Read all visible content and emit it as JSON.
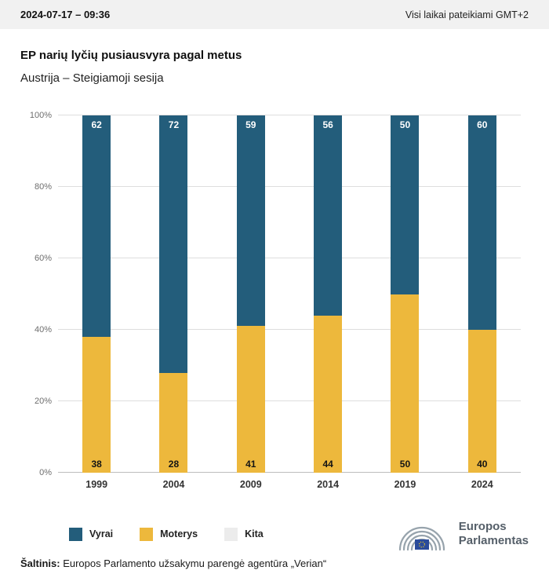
{
  "header": {
    "datetime": "2024-07-17 – 09:36",
    "timezone_note": "Visi laikai pateikiami GMT+2"
  },
  "title": "EP narių lyčių pusiausvyra pagal metus",
  "subtitle": "Austrija – Steigiamoji sesija",
  "chart_data": {
    "type": "bar",
    "stacked": true,
    "categories": [
      "1999",
      "2004",
      "2009",
      "2014",
      "2019",
      "2024"
    ],
    "series": [
      {
        "name": "Vyrai",
        "color": "#235d7b",
        "values": [
          62,
          72,
          59,
          56,
          50,
          60
        ]
      },
      {
        "name": "Moterys",
        "color": "#edb83c",
        "values": [
          38,
          28,
          41,
          44,
          50,
          40
        ]
      },
      {
        "name": "Kita",
        "color": "#ececec",
        "values": [
          0,
          0,
          0,
          0,
          0,
          0
        ]
      }
    ],
    "ylim": [
      0,
      100
    ],
    "yticks": [
      "0%",
      "20%",
      "40%",
      "60%",
      "80%",
      "100%"
    ],
    "grid": true,
    "legend_position": "bottom",
    "value_labels": true
  },
  "legend": {
    "items": [
      {
        "label": "Vyrai",
        "color": "#235d7b"
      },
      {
        "label": "Moterys",
        "color": "#edb83c"
      },
      {
        "label": "Kita",
        "color": "#ececec"
      }
    ]
  },
  "logo": {
    "line1": "Europos",
    "line2": "Parlamentas",
    "icon": "european-parliament-hemicycle-with-eu-flag"
  },
  "source": {
    "label": "Šaltinis:",
    "text": " Europos Parlamento užsakymu parengė agentūra „Verian“"
  }
}
